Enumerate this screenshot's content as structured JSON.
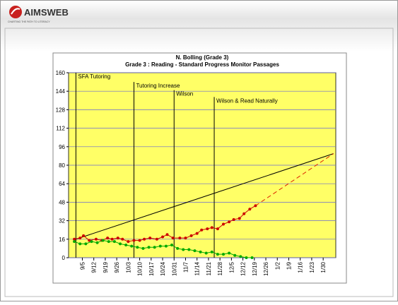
{
  "header": {
    "logo": "AIMSWEB",
    "tagline": "CHARTING THE PATH TO LITERACY"
  },
  "chart_data": {
    "type": "line",
    "title": "N. Bolling (Grade 3)",
    "subtitle": "Grade 3 : Reading - Standard Progress Monitor Passages",
    "xlim": [
      -1.2,
      22.1
    ],
    "xticks": [
      {
        "value": 0,
        "label": "9/5"
      },
      {
        "value": 1,
        "label": "9/12"
      },
      {
        "value": 2,
        "label": "9/19"
      },
      {
        "value": 3,
        "label": "9/26"
      },
      {
        "value": 4,
        "label": "10/3"
      },
      {
        "value": 5,
        "label": "10/10"
      },
      {
        "value": 6,
        "label": "10/17"
      },
      {
        "value": 7,
        "label": "10/24"
      },
      {
        "value": 8,
        "label": "10/31"
      },
      {
        "value": 9,
        "label": "11/7"
      },
      {
        "value": 10,
        "label": "11/14"
      },
      {
        "value": 11,
        "label": "11/21"
      },
      {
        "value": 12,
        "label": "11/28"
      },
      {
        "value": 13,
        "label": "12/5"
      },
      {
        "value": 14,
        "label": "12/12"
      },
      {
        "value": 15,
        "label": "12/19"
      },
      {
        "value": 16,
        "label": "12/26"
      },
      {
        "value": 17,
        "label": "1/2"
      },
      {
        "value": 18,
        "label": "1/9"
      },
      {
        "value": 19,
        "label": "1/16"
      },
      {
        "value": 20,
        "label": "1/23"
      },
      {
        "value": 21,
        "label": "1/30"
      }
    ],
    "ylim": [
      0,
      160
    ],
    "yticks": [
      0,
      16,
      32,
      48,
      64,
      80,
      96,
      112,
      128,
      144,
      160
    ],
    "grid": true,
    "plot_color": "#ffff66",
    "series": [
      {
        "color": "#cc0000",
        "x": [
          -0.7,
          -0.2,
          0.1,
          0.6,
          1.2,
          1.7,
          2.2,
          2.6,
          3.1,
          3.5,
          4.0,
          4.5,
          5.0,
          5.4,
          5.9,
          6.5,
          7.0,
          7.4,
          7.9,
          8.5,
          9.0,
          9.5,
          10.0,
          10.4,
          10.9,
          11.3,
          11.8,
          12.3,
          12.8,
          13.2,
          13.7,
          14.1,
          14.6,
          15.1
        ],
        "values": [
          16,
          17,
          19,
          15,
          16,
          15,
          17,
          16,
          17,
          16,
          14,
          15,
          15,
          16,
          17,
          16,
          18,
          20,
          17,
          17,
          17,
          19,
          21,
          24,
          25,
          26,
          25,
          29,
          31,
          33,
          34,
          38,
          42,
          45
        ]
      },
      {
        "color": "#00aa00",
        "x": [
          -0.7,
          -0.2,
          0.3,
          0.8,
          1.3,
          1.8,
          2.3,
          2.8,
          3.3,
          3.8,
          4.3,
          4.8,
          5.3,
          5.8,
          6.3,
          6.8,
          7.3,
          7.8,
          8.3,
          8.8,
          9.3,
          9.8,
          10.3,
          10.8,
          11.3,
          11.8,
          12.3,
          12.8,
          13.3,
          13.8,
          14.3,
          14.8
        ],
        "values": [
          14,
          12,
          12,
          14,
          13,
          15,
          14,
          14,
          12,
          11,
          10,
          9,
          8,
          9,
          9,
          10,
          10,
          11,
          8,
          7,
          7,
          6,
          5,
          4,
          5,
          3,
          3,
          4,
          2,
          1,
          0,
          0
        ]
      }
    ],
    "lines": [
      {
        "color": "#000000",
        "dashed": false,
        "x": [
          -0.56,
          21.9
        ],
        "values": [
          16,
          90
        ]
      },
      {
        "color": "#dd2200",
        "dashed": true,
        "x": [
          15.1,
          21.9
        ],
        "values": [
          45,
          90
        ]
      }
    ],
    "annotations": [
      {
        "text": "SFA Tutoring",
        "x": -0.56,
        "y": 160
      },
      {
        "text": "Tutoring Increase",
        "x": 4.5,
        "y": 152
      },
      {
        "text": "Wilson",
        "x": 8.0,
        "y": 145
      },
      {
        "text": "Wilson & Read Naturally",
        "x": 11.5,
        "y": 139
      }
    ]
  }
}
